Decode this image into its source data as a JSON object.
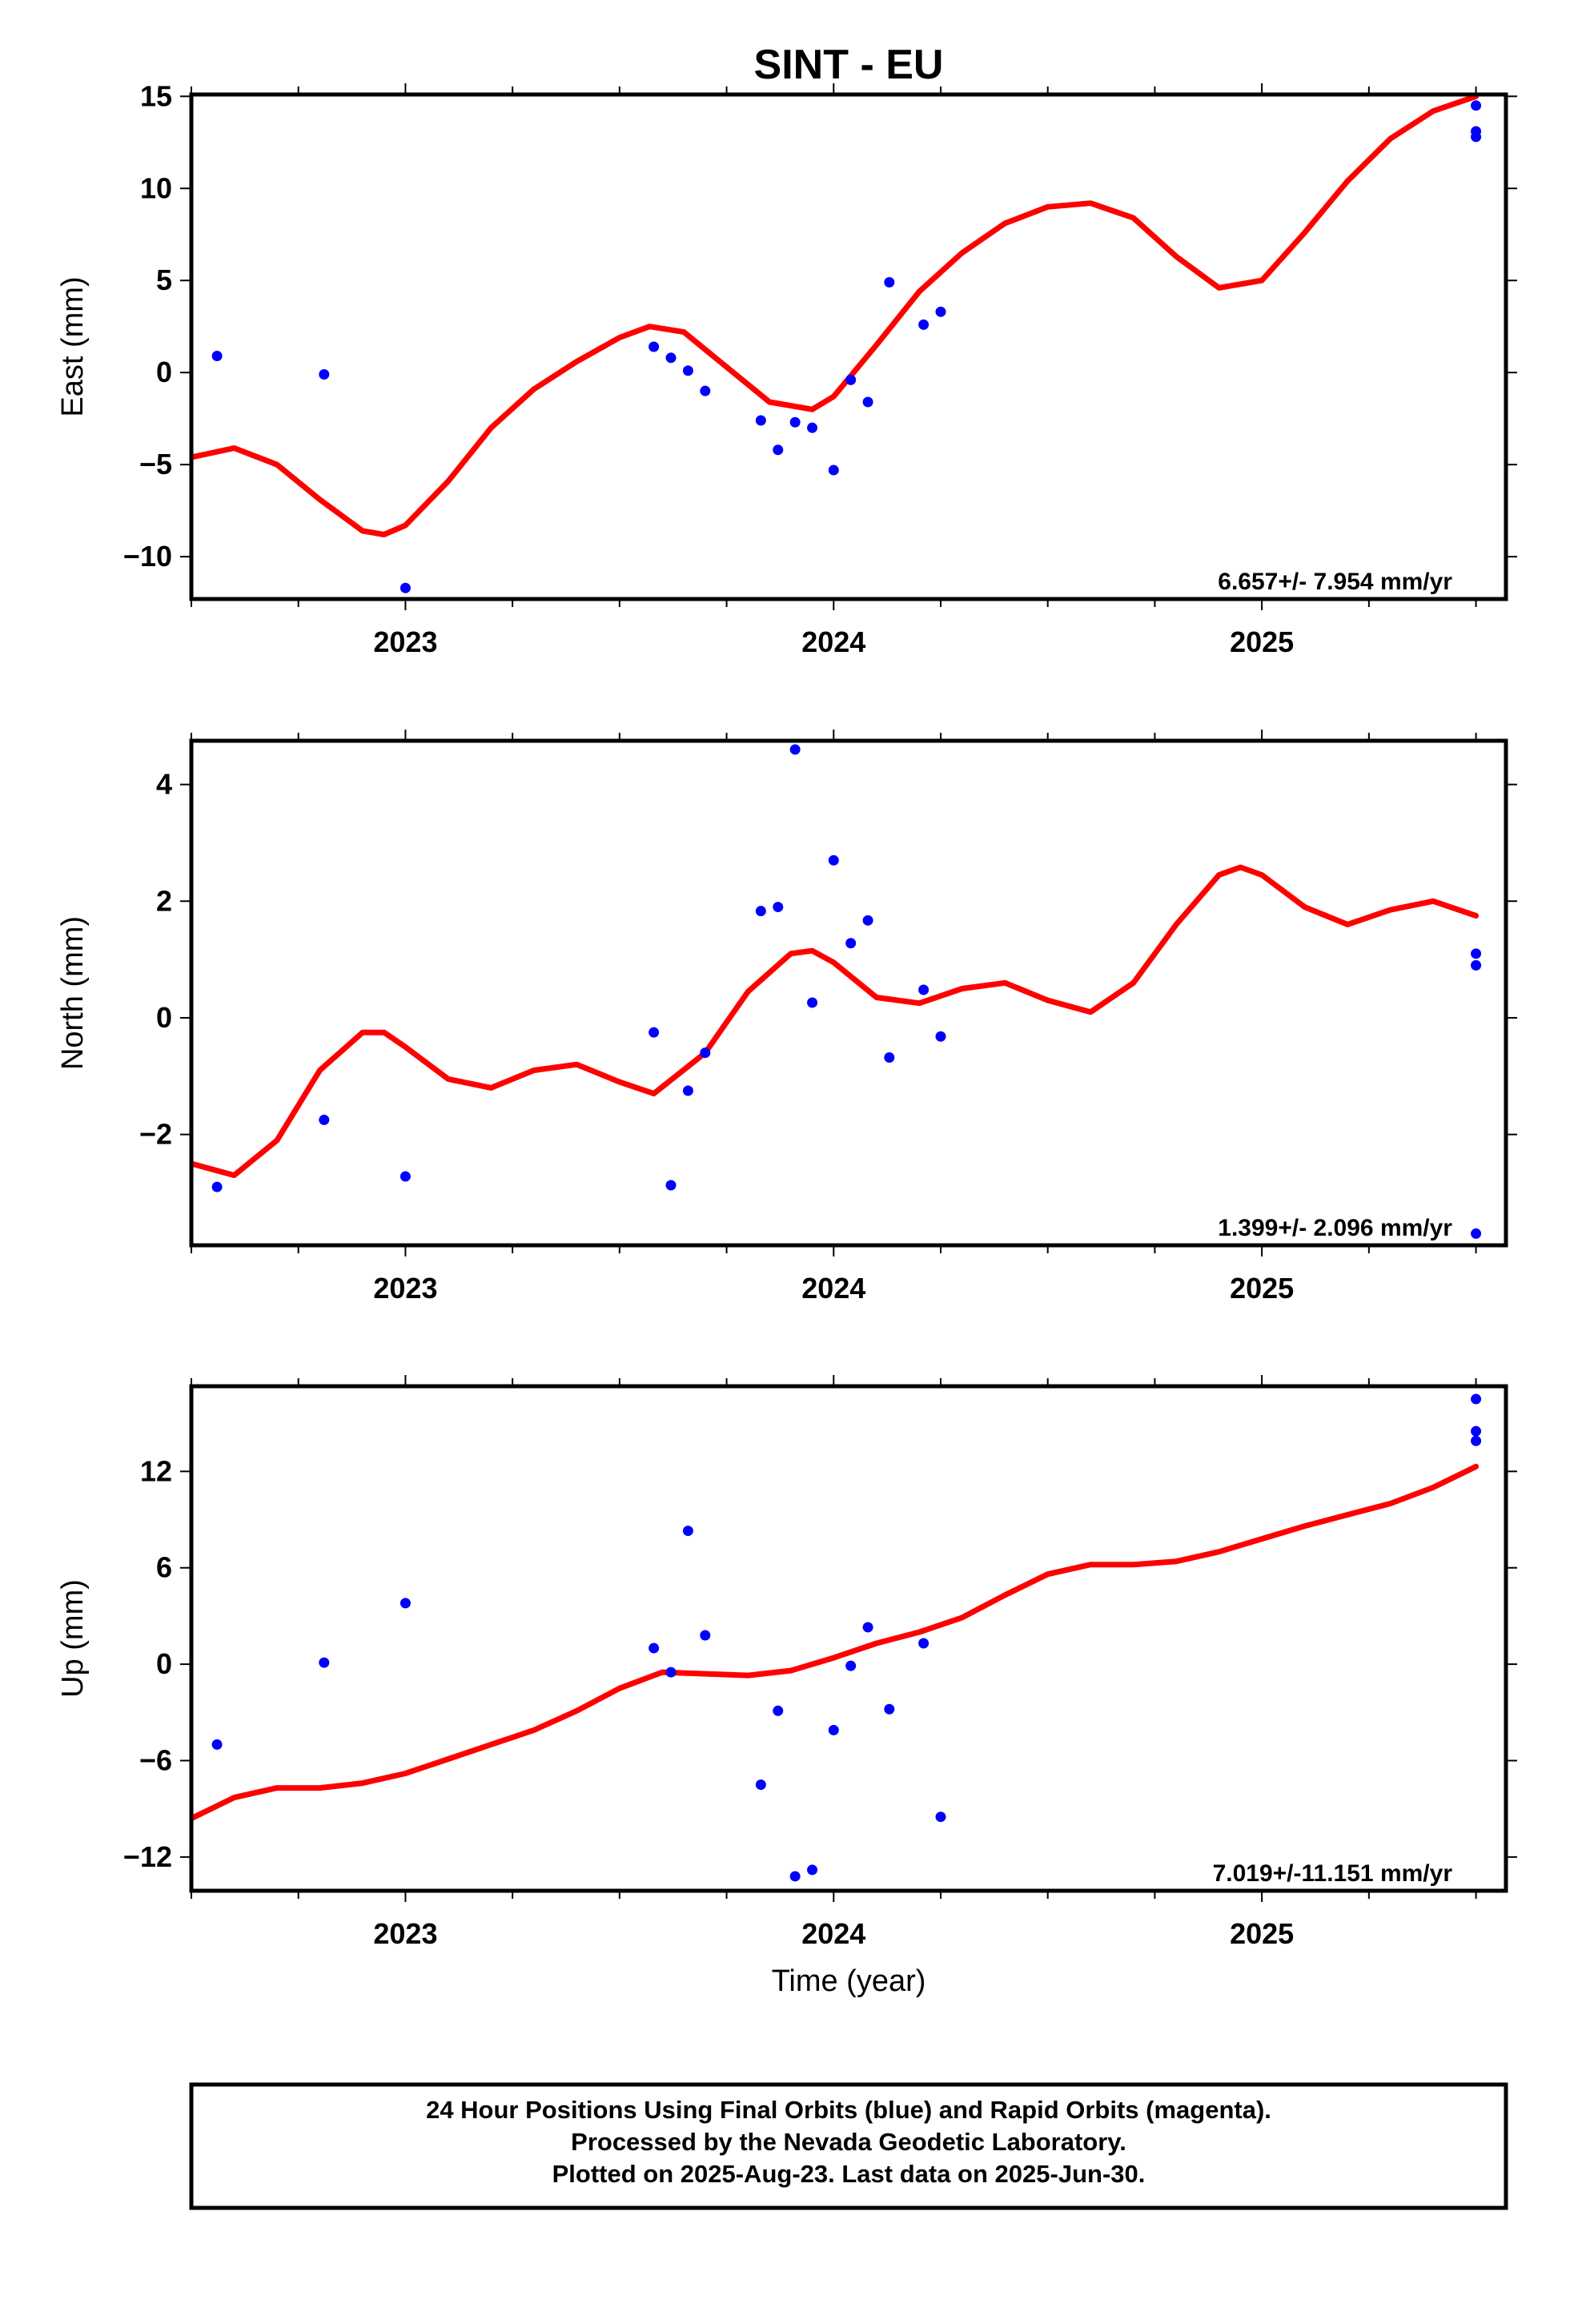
{
  "title": "SINT - EU",
  "footer": {
    "lines": [
      "24 Hour Positions Using Final Orbits (blue) and Rapid Orbits (magenta).",
      "Processed by the Nevada Geodetic Laboratory.",
      "Plotted on 2025-Aug-23. Last data on 2025-Jun-30."
    ]
  },
  "colors": {
    "points": "#0000ff",
    "fit": "#ff0000",
    "frame": "#000000"
  },
  "chart_data": [
    {
      "type": "scatter",
      "ylabel": "East (mm)",
      "xlabel": "",
      "rate_text": "6.657+/- 7.954 mm/yr",
      "xlim": [
        2022.5,
        2025.57
      ],
      "ylim": [
        -12.3,
        15.1
      ],
      "xticks": [
        2023,
        2024,
        2025
      ],
      "yticks": [
        -10,
        -5,
        0,
        5,
        10,
        15
      ],
      "ytick_labels": [
        "−10",
        "−5",
        "0",
        "5",
        "10",
        "15"
      ],
      "series": [
        {
          "kind": "points",
          "x": [
            2022.56,
            2022.81,
            2023.0,
            2023.58,
            2023.62,
            2023.66,
            2023.7,
            2023.83,
            2023.87,
            2023.91,
            2023.95,
            2024.0,
            2024.04,
            2024.08,
            2024.13,
            2024.21,
            2024.25,
            2025.5,
            2025.5,
            2025.5
          ],
          "y": [
            0.9,
            -0.1,
            -11.7,
            1.4,
            0.8,
            0.1,
            -1.0,
            -2.6,
            -4.2,
            -2.7,
            -3.0,
            -5.3,
            -0.4,
            -1.6,
            4.9,
            2.6,
            3.3,
            14.5,
            13.1,
            12.8
          ]
        },
        {
          "kind": "fit",
          "x": [
            2022.5,
            2022.6,
            2022.7,
            2022.8,
            2022.9,
            2022.95,
            2023.0,
            2023.1,
            2023.2,
            2023.3,
            2023.4,
            2023.5,
            2023.57,
            2023.65,
            2023.75,
            2023.85,
            2023.95,
            2024.0,
            2024.1,
            2024.2,
            2024.3,
            2024.4,
            2024.5,
            2024.6,
            2024.7,
            2024.8,
            2024.9,
            2025.0,
            2025.1,
            2025.2,
            2025.3,
            2025.4,
            2025.5
          ],
          "y": [
            -4.6,
            -4.1,
            -5.0,
            -6.9,
            -8.6,
            -8.8,
            -8.3,
            -5.9,
            -3.0,
            -0.9,
            0.6,
            1.9,
            2.5,
            2.2,
            0.3,
            -1.6,
            -2.0,
            -1.3,
            1.5,
            4.4,
            6.5,
            8.1,
            9.0,
            9.2,
            8.4,
            6.3,
            4.6,
            5.0,
            7.6,
            10.4,
            12.7,
            14.2,
            15.0
          ]
        }
      ]
    },
    {
      "type": "scatter",
      "ylabel": "North (mm)",
      "xlabel": "",
      "rate_text": "1.399+/- 2.096 mm/yr",
      "xlim": [
        2022.5,
        2025.57
      ],
      "ylim": [
        -3.9,
        4.75
      ],
      "xticks": [
        2023,
        2024,
        2025
      ],
      "yticks": [
        -2,
        0,
        2,
        4
      ],
      "ytick_labels": [
        "−2",
        "0",
        "2",
        "4"
      ],
      "series": [
        {
          "kind": "points",
          "x": [
            2022.56,
            2022.81,
            2023.0,
            2023.58,
            2023.62,
            2023.66,
            2023.7,
            2023.83,
            2023.87,
            2023.91,
            2023.95,
            2024.0,
            2024.04,
            2024.08,
            2024.13,
            2024.21,
            2024.25,
            2025.5,
            2025.5,
            2025.5
          ],
          "y": [
            -2.9,
            -1.75,
            -2.72,
            -0.25,
            -2.87,
            -1.25,
            -0.6,
            1.83,
            1.9,
            4.6,
            0.26,
            2.7,
            1.28,
            1.67,
            -0.68,
            0.48,
            -0.32,
            1.1,
            0.9,
            -3.7
          ]
        },
        {
          "kind": "fit",
          "x": [
            2022.5,
            2022.6,
            2022.7,
            2022.8,
            2022.9,
            2022.95,
            2023.0,
            2023.1,
            2023.2,
            2023.3,
            2023.4,
            2023.5,
            2023.58,
            2023.7,
            2023.8,
            2023.9,
            2023.95,
            2024.0,
            2024.1,
            2024.2,
            2024.3,
            2024.4,
            2024.5,
            2024.6,
            2024.7,
            2024.8,
            2024.9,
            2024.95,
            2025.0,
            2025.1,
            2025.2,
            2025.3,
            2025.4,
            2025.5
          ],
          "y": [
            -2.5,
            -2.7,
            -2.1,
            -0.9,
            -0.25,
            -0.25,
            -0.5,
            -1.05,
            -1.2,
            -0.9,
            -0.8,
            -1.1,
            -1.3,
            -0.6,
            0.45,
            1.1,
            1.15,
            0.95,
            0.35,
            0.25,
            0.5,
            0.6,
            0.3,
            0.1,
            0.6,
            1.6,
            2.45,
            2.58,
            2.45,
            1.9,
            1.6,
            1.85,
            2.0,
            1.75
          ]
        }
      ]
    },
    {
      "type": "scatter",
      "ylabel": "Up (mm)",
      "xlabel": "Time (year)",
      "rate_text": "7.019+/-11.151 mm/yr",
      "xlim": [
        2022.5,
        2025.57
      ],
      "ylim": [
        -14.1,
        17.3
      ],
      "xticks": [
        2023,
        2024,
        2025
      ],
      "yticks": [
        -12,
        -6,
        0,
        6,
        12
      ],
      "ytick_labels": [
        "−12",
        "−6",
        "0",
        "6",
        "12"
      ],
      "series": [
        {
          "kind": "points",
          "x": [
            2022.56,
            2022.81,
            2023.0,
            2023.58,
            2023.62,
            2023.66,
            2023.7,
            2023.83,
            2023.87,
            2023.91,
            2023.95,
            2024.0,
            2024.04,
            2024.08,
            2024.13,
            2024.21,
            2024.25,
            2025.5,
            2025.5,
            2025.5
          ],
          "y": [
            -5.0,
            0.1,
            3.8,
            1.0,
            -0.5,
            8.3,
            1.8,
            -7.5,
            -2.9,
            -13.2,
            -12.8,
            -4.1,
            -0.1,
            2.3,
            -2.8,
            1.3,
            -9.5,
            16.5,
            14.5,
            13.9
          ]
        },
        {
          "kind": "fit",
          "x": [
            2022.5,
            2022.6,
            2022.7,
            2022.8,
            2022.9,
            2023.0,
            2023.1,
            2023.2,
            2023.3,
            2023.4,
            2023.5,
            2023.6,
            2023.7,
            2023.8,
            2023.9,
            2024.0,
            2024.1,
            2024.2,
            2024.3,
            2024.4,
            2024.5,
            2024.6,
            2024.7,
            2024.8,
            2024.9,
            2025.0,
            2025.1,
            2025.2,
            2025.3,
            2025.4,
            2025.5
          ],
          "y": [
            -9.6,
            -8.3,
            -7.7,
            -7.7,
            -7.4,
            -6.8,
            -5.9,
            -5.0,
            -4.1,
            -2.9,
            -1.5,
            -0.5,
            -0.6,
            -0.7,
            -0.4,
            0.4,
            1.3,
            2.0,
            2.9,
            4.3,
            5.6,
            6.2,
            6.2,
            6.4,
            7.0,
            7.8,
            8.6,
            9.3,
            10.0,
            11.0,
            12.3
          ]
        }
      ]
    }
  ]
}
